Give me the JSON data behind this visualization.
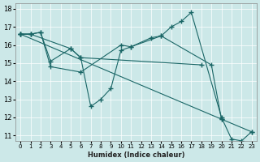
{
  "xlabel": "Humidex (Indice chaleur)",
  "bg_color": "#cce8e8",
  "line_color": "#1a6666",
  "grid_color": "#ffffff",
  "xlim": [
    -0.5,
    23.5
  ],
  "ylim": [
    10.7,
    18.3
  ],
  "xticks": [
    0,
    1,
    2,
    3,
    4,
    5,
    6,
    7,
    8,
    9,
    10,
    11,
    12,
    13,
    14,
    15,
    16,
    17,
    18,
    19,
    20,
    21,
    22,
    23
  ],
  "yticks": [
    11,
    12,
    13,
    14,
    15,
    16,
    17,
    18
  ],
  "series": [
    {
      "x": [
        0,
        1,
        2,
        3,
        5,
        6,
        7,
        8,
        9,
        10,
        11,
        13,
        14,
        15,
        16,
        17,
        20,
        21,
        22,
        23
      ],
      "y": [
        16.6,
        16.6,
        16.7,
        15.1,
        15.8,
        15.3,
        12.6,
        13.0,
        13.6,
        15.7,
        15.9,
        16.4,
        16.5,
        17.0,
        17.3,
        17.8,
        12.0,
        10.8,
        10.7,
        11.2
      ]
    },
    {
      "x": [
        0,
        1,
        2,
        3,
        6,
        10,
        11,
        14,
        19,
        20
      ],
      "y": [
        16.6,
        16.6,
        16.7,
        14.8,
        14.5,
        16.0,
        15.9,
        16.5,
        14.9,
        11.9
      ]
    },
    {
      "x": [
        0,
        1,
        5,
        6,
        18
      ],
      "y": [
        16.6,
        16.6,
        15.8,
        15.3,
        14.9
      ]
    },
    {
      "x": [
        0,
        20,
        23
      ],
      "y": [
        16.6,
        11.9,
        11.2
      ]
    }
  ]
}
